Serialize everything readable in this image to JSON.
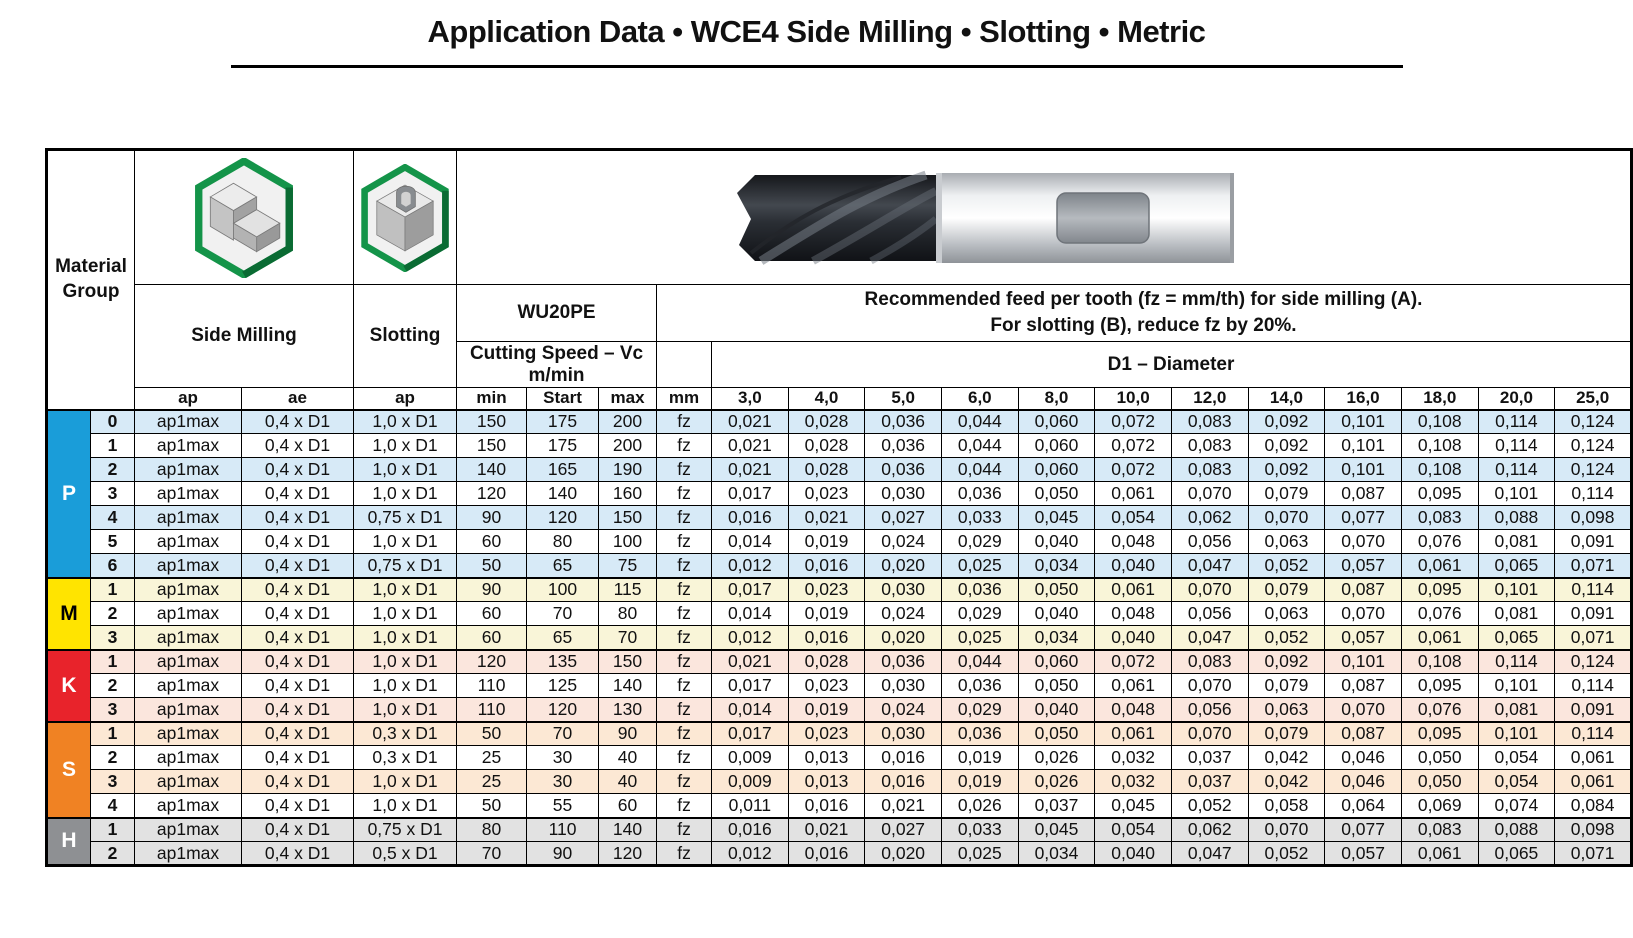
{
  "page_title": "Application Data • WCE4 Side Milling • Slotting • Metric",
  "table": {
    "header": {
      "material_group": "Material Group",
      "side_milling": "Side Milling",
      "slotting": "Slotting",
      "grade": "WU20PE",
      "cutting_speed_line1": "Cutting Speed – Vc",
      "cutting_speed_line2": "m/min",
      "feed_note_line1": "Recommended feed per tooth (fz = mm/th) for side milling (A).",
      "feed_note_line2": "For slotting (B), reduce fz by 20%.",
      "diameter_title": "D1 – Diameter",
      "col_ap_side": "ap",
      "col_ae": "ae",
      "col_ap_slot": "ap",
      "col_min": "min",
      "col_start": "Start",
      "col_max": "max",
      "col_mm": "mm",
      "diameters": [
        "3,0",
        "4,0",
        "5,0",
        "6,0",
        "8,0",
        "10,0",
        "12,0",
        "14,0",
        "16,0",
        "18,0",
        "20,0",
        "25,0"
      ]
    },
    "icons": {
      "side_milling_icon": "hex-green-step-block",
      "slotting_icon": "hex-green-slot-block",
      "photo": "end-mill-cutter-photo"
    },
    "groups": [
      {
        "letter": "P",
        "color": "#1a9dd9",
        "letter_color": "#ffffff",
        "tint": "#d7eaf7",
        "shading": "alternate",
        "rows": [
          {
            "no": "0",
            "ap": "ap1max",
            "ae": "0,4 x D1",
            "ap_slot": "1,0 x D1",
            "vc_min": "150",
            "vc_start": "175",
            "vc_max": "200",
            "unit": "fz",
            "fz": [
              "0,021",
              "0,028",
              "0,036",
              "0,044",
              "0,060",
              "0,072",
              "0,083",
              "0,092",
              "0,101",
              "0,108",
              "0,114",
              "0,124"
            ]
          },
          {
            "no": "1",
            "ap": "ap1max",
            "ae": "0,4 x D1",
            "ap_slot": "1,0 x D1",
            "vc_min": "150",
            "vc_start": "175",
            "vc_max": "200",
            "unit": "fz",
            "fz": [
              "0,021",
              "0,028",
              "0,036",
              "0,044",
              "0,060",
              "0,072",
              "0,083",
              "0,092",
              "0,101",
              "0,108",
              "0,114",
              "0,124"
            ]
          },
          {
            "no": "2",
            "ap": "ap1max",
            "ae": "0,4 x D1",
            "ap_slot": "1,0 x D1",
            "vc_min": "140",
            "vc_start": "165",
            "vc_max": "190",
            "unit": "fz",
            "fz": [
              "0,021",
              "0,028",
              "0,036",
              "0,044",
              "0,060",
              "0,072",
              "0,083",
              "0,092",
              "0,101",
              "0,108",
              "0,114",
              "0,124"
            ]
          },
          {
            "no": "3",
            "ap": "ap1max",
            "ae": "0,4 x D1",
            "ap_slot": "1,0 x D1",
            "vc_min": "120",
            "vc_start": "140",
            "vc_max": "160",
            "unit": "fz",
            "fz": [
              "0,017",
              "0,023",
              "0,030",
              "0,036",
              "0,050",
              "0,061",
              "0,070",
              "0,079",
              "0,087",
              "0,095",
              "0,101",
              "0,114"
            ]
          },
          {
            "no": "4",
            "ap": "ap1max",
            "ae": "0,4 x D1",
            "ap_slot": "0,75 x D1",
            "vc_min": "90",
            "vc_start": "120",
            "vc_max": "150",
            "unit": "fz",
            "fz": [
              "0,016",
              "0,021",
              "0,027",
              "0,033",
              "0,045",
              "0,054",
              "0,062",
              "0,070",
              "0,077",
              "0,083",
              "0,088",
              "0,098"
            ]
          },
          {
            "no": "5",
            "ap": "ap1max",
            "ae": "0,4 x D1",
            "ap_slot": "1,0 x D1",
            "vc_min": "60",
            "vc_start": "80",
            "vc_max": "100",
            "unit": "fz",
            "fz": [
              "0,014",
              "0,019",
              "0,024",
              "0,029",
              "0,040",
              "0,048",
              "0,056",
              "0,063",
              "0,070",
              "0,076",
              "0,081",
              "0,091"
            ]
          },
          {
            "no": "6",
            "ap": "ap1max",
            "ae": "0,4 x D1",
            "ap_slot": "0,75 x D1",
            "vc_min": "50",
            "vc_start": "65",
            "vc_max": "75",
            "unit": "fz",
            "fz": [
              "0,012",
              "0,016",
              "0,020",
              "0,025",
              "0,034",
              "0,040",
              "0,047",
              "0,052",
              "0,057",
              "0,061",
              "0,065",
              "0,071"
            ]
          }
        ]
      },
      {
        "letter": "M",
        "color": "#ffe400",
        "letter_color": "#000000",
        "tint": "#f9f5d8",
        "shading": "alternate",
        "rows": [
          {
            "no": "1",
            "ap": "ap1max",
            "ae": "0,4 x D1",
            "ap_slot": "1,0 x D1",
            "vc_min": "90",
            "vc_start": "100",
            "vc_max": "115",
            "unit": "fz",
            "fz": [
              "0,017",
              "0,023",
              "0,030",
              "0,036",
              "0,050",
              "0,061",
              "0,070",
              "0,079",
              "0,087",
              "0,095",
              "0,101",
              "0,114"
            ]
          },
          {
            "no": "2",
            "ap": "ap1max",
            "ae": "0,4 x D1",
            "ap_slot": "1,0 x D1",
            "vc_min": "60",
            "vc_start": "70",
            "vc_max": "80",
            "unit": "fz",
            "fz": [
              "0,014",
              "0,019",
              "0,024",
              "0,029",
              "0,040",
              "0,048",
              "0,056",
              "0,063",
              "0,070",
              "0,076",
              "0,081",
              "0,091"
            ]
          },
          {
            "no": "3",
            "ap": "ap1max",
            "ae": "0,4 x D1",
            "ap_slot": "1,0 x D1",
            "vc_min": "60",
            "vc_start": "65",
            "vc_max": "70",
            "unit": "fz",
            "fz": [
              "0,012",
              "0,016",
              "0,020",
              "0,025",
              "0,034",
              "0,040",
              "0,047",
              "0,052",
              "0,057",
              "0,061",
              "0,065",
              "0,071"
            ]
          }
        ]
      },
      {
        "letter": "K",
        "color": "#e8232b",
        "letter_color": "#ffffff",
        "tint": "#fbe6dd",
        "shading": "alternate",
        "rows": [
          {
            "no": "1",
            "ap": "ap1max",
            "ae": "0,4 x D1",
            "ap_slot": "1,0 x D1",
            "vc_min": "120",
            "vc_start": "135",
            "vc_max": "150",
            "unit": "fz",
            "fz": [
              "0,021",
              "0,028",
              "0,036",
              "0,044",
              "0,060",
              "0,072",
              "0,083",
              "0,092",
              "0,101",
              "0,108",
              "0,114",
              "0,124"
            ]
          },
          {
            "no": "2",
            "ap": "ap1max",
            "ae": "0,4 x D1",
            "ap_slot": "1,0 x D1",
            "vc_min": "110",
            "vc_start": "125",
            "vc_max": "140",
            "unit": "fz",
            "fz": [
              "0,017",
              "0,023",
              "0,030",
              "0,036",
              "0,050",
              "0,061",
              "0,070",
              "0,079",
              "0,087",
              "0,095",
              "0,101",
              "0,114"
            ]
          },
          {
            "no": "3",
            "ap": "ap1max",
            "ae": "0,4 x D1",
            "ap_slot": "1,0 x D1",
            "vc_min": "110",
            "vc_start": "120",
            "vc_max": "130",
            "unit": "fz",
            "fz": [
              "0,014",
              "0,019",
              "0,024",
              "0,029",
              "0,040",
              "0,048",
              "0,056",
              "0,063",
              "0,070",
              "0,076",
              "0,081",
              "0,091"
            ]
          }
        ]
      },
      {
        "letter": "S",
        "color": "#f08223",
        "letter_color": "#ffffff",
        "tint": "#fce8d4",
        "shading": "alternate",
        "rows": [
          {
            "no": "1",
            "ap": "ap1max",
            "ae": "0,4 x D1",
            "ap_slot": "0,3 x D1",
            "vc_min": "50",
            "vc_start": "70",
            "vc_max": "90",
            "unit": "fz",
            "fz": [
              "0,017",
              "0,023",
              "0,030",
              "0,036",
              "0,050",
              "0,061",
              "0,070",
              "0,079",
              "0,087",
              "0,095",
              "0,101",
              "0,114"
            ]
          },
          {
            "no": "2",
            "ap": "ap1max",
            "ae": "0,4 x D1",
            "ap_slot": "0,3 x D1",
            "vc_min": "25",
            "vc_start": "30",
            "vc_max": "40",
            "unit": "fz",
            "fz": [
              "0,009",
              "0,013",
              "0,016",
              "0,019",
              "0,026",
              "0,032",
              "0,037",
              "0,042",
              "0,046",
              "0,050",
              "0,054",
              "0,061"
            ]
          },
          {
            "no": "3",
            "ap": "ap1max",
            "ae": "0,4 x D1",
            "ap_slot": "1,0 x D1",
            "vc_min": "25",
            "vc_start": "30",
            "vc_max": "40",
            "unit": "fz",
            "fz": [
              "0,009",
              "0,013",
              "0,016",
              "0,019",
              "0,026",
              "0,032",
              "0,037",
              "0,042",
              "0,046",
              "0,050",
              "0,054",
              "0,061"
            ]
          },
          {
            "no": "4",
            "ap": "ap1max",
            "ae": "0,4 x D1",
            "ap_slot": "1,0 x D1",
            "vc_min": "50",
            "vc_start": "55",
            "vc_max": "60",
            "unit": "fz",
            "fz": [
              "0,011",
              "0,016",
              "0,021",
              "0,026",
              "0,037",
              "0,045",
              "0,052",
              "0,058",
              "0,064",
              "0,069",
              "0,074",
              "0,084"
            ]
          }
        ]
      },
      {
        "letter": "H",
        "color": "#8e9093",
        "letter_color": "#ffffff",
        "tint": "#e2e2e2",
        "shading": "all",
        "rows": [
          {
            "no": "1",
            "ap": "ap1max",
            "ae": "0,4 x D1",
            "ap_slot": "0,75 x D1",
            "vc_min": "80",
            "vc_start": "110",
            "vc_max": "140",
            "unit": "fz",
            "fz": [
              "0,016",
              "0,021",
              "0,027",
              "0,033",
              "0,045",
              "0,054",
              "0,062",
              "0,070",
              "0,077",
              "0,083",
              "0,088",
              "0,098"
            ]
          },
          {
            "no": "2",
            "ap": "ap1max",
            "ae": "0,4 x D1",
            "ap_slot": "0,5 x D1",
            "vc_min": "70",
            "vc_start": "90",
            "vc_max": "120",
            "unit": "fz",
            "fz": [
              "0,012",
              "0,016",
              "0,020",
              "0,025",
              "0,034",
              "0,040",
              "0,047",
              "0,052",
              "0,057",
              "0,061",
              "0,065",
              "0,071"
            ]
          }
        ]
      }
    ]
  }
}
